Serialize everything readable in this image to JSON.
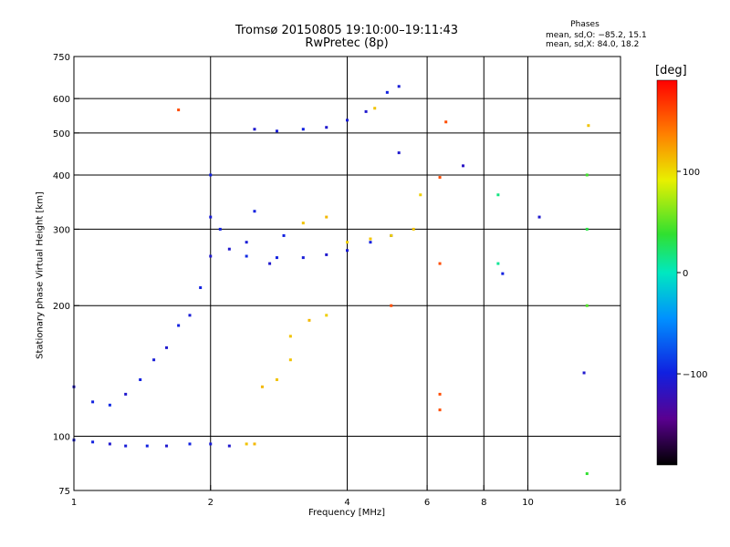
{
  "header": {
    "title": "Tromsø 20150805 19:10:00–19:11:43",
    "subtitle": "RwPretec (8p)"
  },
  "phase_box": {
    "title": "Phases",
    "o_line": "mean, sd,O: −85.2, 15.1",
    "x_line": "mean, sd,X: 84.0, 18.2"
  },
  "colorbar": {
    "unit": "[deg]",
    "ticks": [
      100,
      0,
      -100
    ],
    "tick_labels": [
      "100",
      "0",
      "−100"
    ],
    "range": [
      -190,
      190
    ]
  },
  "chart_data": {
    "type": "scatter",
    "xlabel": "Frequency [MHz]",
    "ylabel": "Stationary phase Virtual Height [km]",
    "xscale": "log",
    "yscale": "log",
    "xlim": [
      1,
      16
    ],
    "ylim": [
      75,
      750
    ],
    "xticks": [
      1,
      2,
      4,
      6,
      8,
      10,
      16
    ],
    "xtick_labels": [
      "1",
      "2",
      "4",
      "6",
      "8",
      "10",
      "16"
    ],
    "yticks": [
      75,
      100,
      200,
      300,
      400,
      500,
      600,
      750
    ],
    "ytick_labels": [
      "75",
      "100",
      "200",
      "300",
      "400",
      "500",
      "600",
      "750"
    ],
    "grid": true,
    "color_variable": "Phase [deg]",
    "series": [
      {
        "points": [
          [
            1.0,
            98,
            -105
          ],
          [
            1.1,
            97,
            -100
          ],
          [
            1.2,
            96,
            -110
          ],
          [
            1.3,
            95,
            -105
          ],
          [
            1.45,
            95,
            -100
          ],
          [
            1.6,
            95,
            -110
          ],
          [
            1.8,
            96,
            -100
          ],
          [
            2.0,
            96,
            -105
          ],
          [
            2.2,
            95,
            -110
          ],
          [
            2.4,
            96,
            110
          ],
          [
            2.5,
            96,
            115
          ],
          [
            1.0,
            130,
            -110
          ],
          [
            1.1,
            120,
            -100
          ],
          [
            1.2,
            118,
            -95
          ],
          [
            1.3,
            125,
            -110
          ],
          [
            1.4,
            135,
            -100
          ],
          [
            1.5,
            150,
            -105
          ],
          [
            1.6,
            160,
            -110
          ],
          [
            1.7,
            180,
            -100
          ],
          [
            1.8,
            190,
            -105
          ],
          [
            1.9,
            220,
            -100
          ],
          [
            2.0,
            260,
            -110
          ],
          [
            2.0,
            320,
            -105
          ],
          [
            2.0,
            400,
            -100
          ],
          [
            2.1,
            300,
            -100
          ],
          [
            2.2,
            270,
            -110
          ],
          [
            2.4,
            280,
            -105
          ],
          [
            2.5,
            330,
            -100
          ],
          [
            2.7,
            250,
            -110
          ],
          [
            2.9,
            290,
            -100
          ],
          [
            2.4,
            260,
            -95
          ],
          [
            2.8,
            258,
            -100
          ],
          [
            3.2,
            258,
            -105
          ],
          [
            3.6,
            262,
            -110
          ],
          [
            4.0,
            268,
            -105
          ],
          [
            4.5,
            280,
            -100
          ],
          [
            5.0,
            290,
            -105
          ],
          [
            5.2,
            450,
            -110
          ],
          [
            2.5,
            510,
            -110
          ],
          [
            2.8,
            505,
            -105
          ],
          [
            3.2,
            510,
            -100
          ],
          [
            3.6,
            515,
            -110
          ],
          [
            4.0,
            535,
            -105
          ],
          [
            4.4,
            560,
            -110
          ],
          [
            4.9,
            620,
            -100
          ],
          [
            5.2,
            640,
            -105
          ],
          [
            3.2,
            310,
            110
          ],
          [
            3.6,
            320,
            115
          ],
          [
            4.0,
            280,
            105
          ],
          [
            4.5,
            285,
            110
          ],
          [
            5.0,
            290,
            105
          ],
          [
            5.6,
            300,
            110
          ],
          [
            5.8,
            360,
            105
          ],
          [
            4.6,
            570,
            110
          ],
          [
            3.0,
            170,
            110
          ],
          [
            3.3,
            185,
            115
          ],
          [
            3.6,
            190,
            105
          ],
          [
            3.0,
            150,
            110
          ],
          [
            2.6,
            130,
            115
          ],
          [
            2.8,
            135,
            110
          ],
          [
            1.7,
            565,
            160
          ],
          [
            6.4,
            395,
            160
          ],
          [
            6.4,
            250,
            160
          ],
          [
            6.6,
            530,
            160
          ],
          [
            5.0,
            200,
            160
          ],
          [
            6.4,
            125,
            160
          ],
          [
            6.4,
            115,
            160
          ],
          [
            13.5,
            400,
            40
          ],
          [
            13.5,
            300,
            30
          ],
          [
            13.5,
            200,
            45
          ],
          [
            13.5,
            82,
            35
          ],
          [
            8.6,
            360,
            15
          ],
          [
            8.6,
            250,
            10
          ],
          [
            10.6,
            320,
            -110
          ],
          [
            13.3,
            140,
            -110
          ],
          [
            13.6,
            520,
            110
          ],
          [
            7.2,
            420,
            -115
          ],
          [
            8.8,
            237,
            -100
          ]
        ]
      }
    ]
  }
}
